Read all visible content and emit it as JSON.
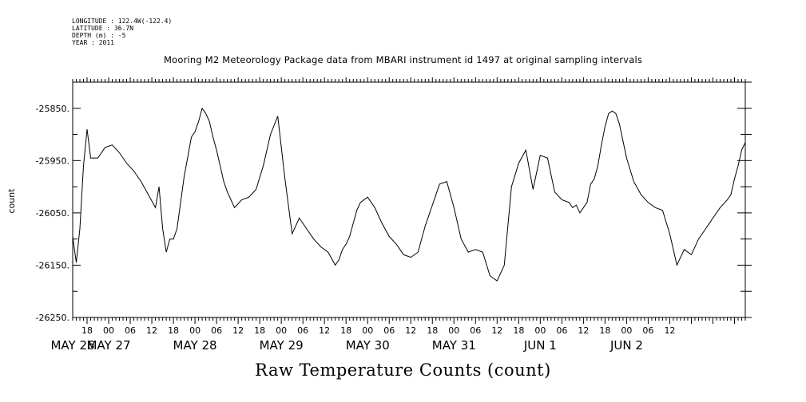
{
  "header": {
    "meta_lines": [
      "LONGITUDE : 122.4W(-122.4)",
      "LATITUDE : 36.7N",
      "DEPTH (m) : -5",
      "YEAR : 2011"
    ]
  },
  "chart_data": {
    "type": "line",
    "title": "Mooring M2 Meteorology Package data from MBARI instrument id 1497 at original sampling intervals",
    "xlabel": "Raw Temperature Counts (count)",
    "ylabel": "count",
    "ylim": [
      -26250,
      -25800
    ],
    "yticks": [
      -25850,
      -25950,
      -26050,
      -26150,
      -26250
    ],
    "ytick_labels": [
      "-25850.",
      "-25950.",
      "-26050.",
      "-26150.",
      "-26250."
    ],
    "xlim_hours": [
      14,
      201
    ],
    "xtick_hour_labels": [
      "18",
      "00",
      "06",
      "12",
      "18",
      "00",
      "06",
      "12",
      "18",
      "00",
      "06",
      "12",
      "18",
      "00",
      "06",
      "12",
      "18",
      "00",
      "06",
      "12",
      "18",
      "00",
      "06",
      "12",
      "18",
      "00",
      "06",
      "12"
    ],
    "date_labels": [
      "MAY 26",
      "MAY 27",
      "MAY 28",
      "MAY 29",
      "MAY 30",
      "MAY 31",
      "JUN  1",
      "JUN  2"
    ],
    "grid": false,
    "x_units": "hours since 2011-05-26 00:00",
    "x": [
      14,
      15,
      16,
      17,
      18,
      19,
      21,
      23,
      25,
      27,
      29,
      31,
      33,
      35,
      37,
      38,
      39,
      40,
      41,
      42,
      43,
      45,
      47,
      48,
      49,
      50,
      51,
      52,
      53,
      54,
      55,
      56,
      57,
      58,
      59,
      61,
      63,
      65,
      67,
      69,
      71,
      73,
      75,
      77,
      79,
      81,
      83,
      85,
      87,
      88,
      89,
      90,
      91,
      92,
      93,
      94,
      96,
      98,
      100,
      102,
      104,
      106,
      108,
      110,
      112,
      114,
      116,
      118,
      120,
      122,
      124,
      126,
      128,
      130,
      132,
      134,
      136,
      138,
      140,
      142,
      144,
      146,
      148,
      150,
      152,
      153,
      154,
      155,
      156,
      157,
      158,
      159,
      160,
      161,
      162,
      163,
      164,
      165,
      166,
      168,
      170,
      172,
      174,
      176,
      178,
      180,
      182,
      184,
      186,
      188,
      190,
      192,
      194,
      196,
      197,
      198,
      199,
      200,
      201
    ],
    "y": [
      -26095,
      -26145,
      -26080,
      -25960,
      -25890,
      -25945,
      -25945,
      -25925,
      -25920,
      -25935,
      -25955,
      -25970,
      -25990,
      -26015,
      -26040,
      -26000,
      -26080,
      -26125,
      -26100,
      -26100,
      -26080,
      -25980,
      -25905,
      -25895,
      -25875,
      -25850,
      -25860,
      -25875,
      -25905,
      -25930,
      -25960,
      -25990,
      -26010,
      -26025,
      -26040,
      -26025,
      -26020,
      -26005,
      -25960,
      -25900,
      -25865,
      -25985,
      -26090,
      -26060,
      -26080,
      -26100,
      -26115,
      -26125,
      -26150,
      -26140,
      -26120,
      -26110,
      -26095,
      -26070,
      -26045,
      -26030,
      -26020,
      -26040,
      -26070,
      -26095,
      -26110,
      -26130,
      -26135,
      -26125,
      -26075,
      -26035,
      -25995,
      -25990,
      -26040,
      -26100,
      -26125,
      -26120,
      -26125,
      -26170,
      -26180,
      -26150,
      -26000,
      -25955,
      -25930,
      -26005,
      -25940,
      -25945,
      -26010,
      -26025,
      -26030,
      -26040,
      -26035,
      -26050,
      -26040,
      -26030,
      -25995,
      -25985,
      -25960,
      -25920,
      -25885,
      -25860,
      -25855,
      -25860,
      -25880,
      -25945,
      -25990,
      -26015,
      -26030,
      -26040,
      -26045,
      -26090,
      -26150,
      -26120,
      -26130,
      -26100,
      -26080,
      -26060,
      -26040,
      -26025,
      -26015,
      -25985,
      -25960,
      -25930,
      -25915
    ]
  }
}
